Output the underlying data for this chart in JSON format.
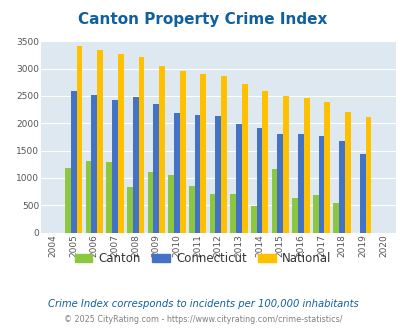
{
  "title": "Canton Property Crime Index",
  "title_color": "#1060a0",
  "years": [
    2004,
    2005,
    2006,
    2007,
    2008,
    2009,
    2010,
    2011,
    2012,
    2013,
    2014,
    2015,
    2016,
    2017,
    2018,
    2019,
    2020
  ],
  "canton": [
    0,
    1190,
    1310,
    1300,
    840,
    1100,
    1050,
    860,
    700,
    700,
    490,
    1170,
    640,
    680,
    550,
    0,
    0
  ],
  "connecticut": [
    0,
    2590,
    2510,
    2430,
    2475,
    2350,
    2185,
    2160,
    2140,
    1995,
    1920,
    1800,
    1800,
    1775,
    1675,
    1430,
    0
  ],
  "national": [
    0,
    3420,
    3340,
    3270,
    3210,
    3040,
    2950,
    2910,
    2860,
    2720,
    2590,
    2490,
    2470,
    2380,
    2200,
    2110,
    0
  ],
  "canton_color": "#8dc63f",
  "connecticut_color": "#4472c4",
  "national_color": "#ffc000",
  "bg_color": "#dde8f0",
  "ylim": [
    0,
    3500
  ],
  "yticks": [
    0,
    500,
    1000,
    1500,
    2000,
    2500,
    3000,
    3500
  ],
  "subtitle": "Crime Index corresponds to incidents per 100,000 inhabitants",
  "subtitle_color": "#1060a0",
  "footer": "© 2025 CityRating.com - https://www.cityrating.com/crime-statistics/",
  "footer_color": "#808080",
  "legend_labels": [
    "Canton",
    "Connecticut",
    "National"
  ],
  "bar_width": 0.28
}
